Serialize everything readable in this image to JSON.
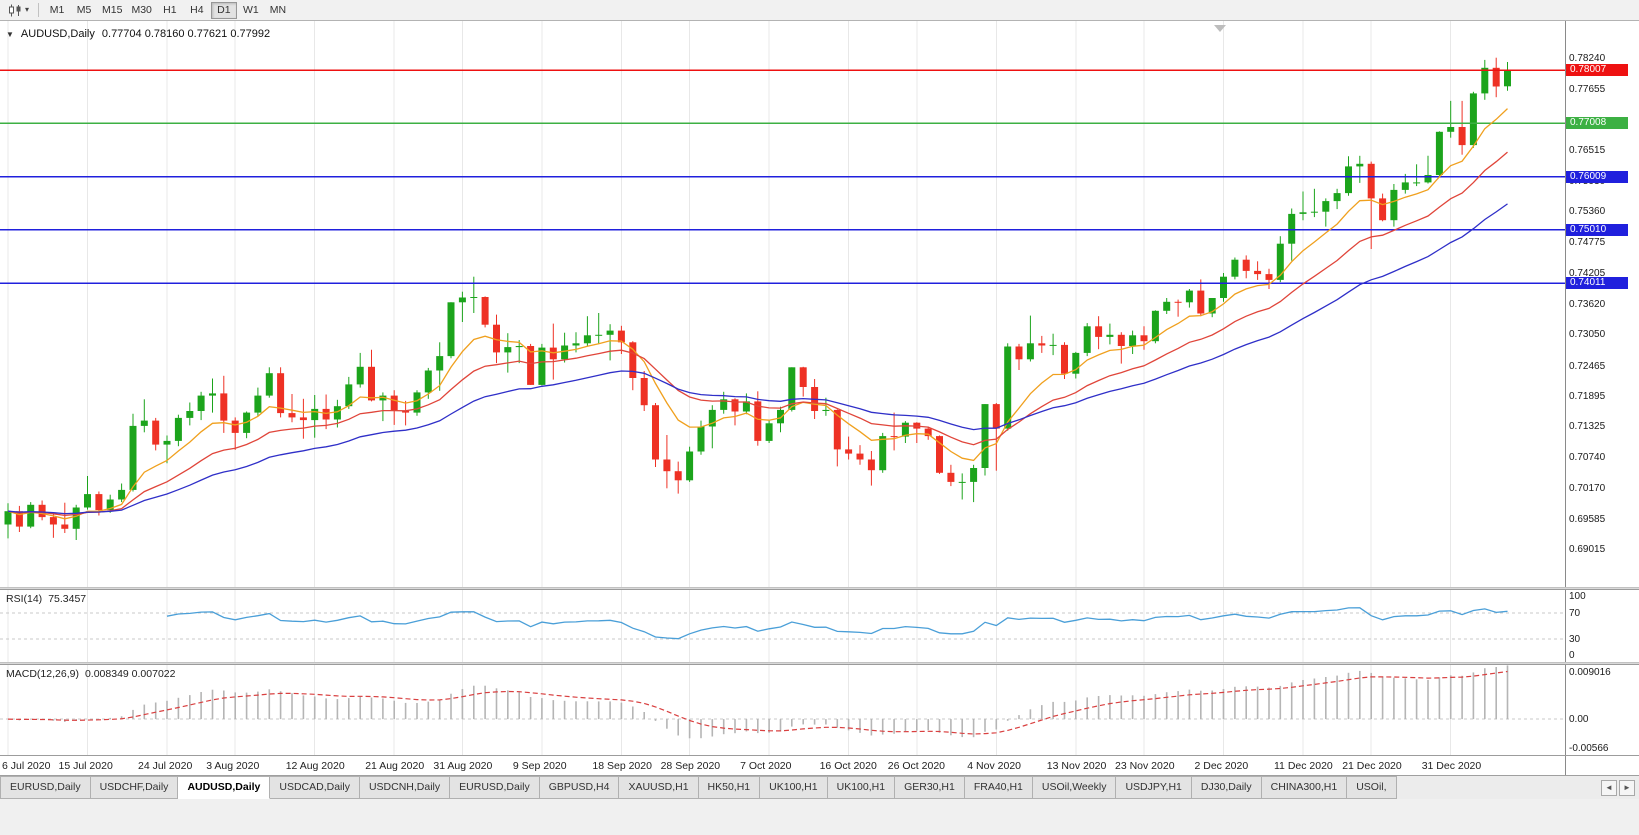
{
  "ui": {
    "collapse_glyph": "▼",
    "caret_glyph": "▾"
  },
  "toolbar": {
    "timeframes": [
      "M1",
      "M5",
      "M15",
      "M30",
      "H1",
      "H4",
      "D1",
      "W1",
      "MN"
    ],
    "active_timeframe": "D1"
  },
  "main_chart": {
    "title": "AUDUSD,Daily",
    "ohlc_line": "0.77704 0.78160 0.77621 0.77992"
  },
  "price_axis_ticks": [
    "0.78240",
    "0.77655",
    "0.76515",
    "0.75930",
    "0.75360",
    "0.74775",
    "0.74205",
    "0.73620",
    "0.73050",
    "0.72465",
    "0.71895",
    "0.71325",
    "0.70740",
    "0.70170",
    "0.69585",
    "0.69015"
  ],
  "chart_data": {
    "type": "candlestick",
    "symbol": "AUDUSD",
    "timeframe": "Daily",
    "current_bar": {
      "open": 0.77704,
      "high": 0.7816,
      "low": 0.77621,
      "close": 0.77992
    },
    "y_axis": {
      "visible_max": 0.7846,
      "visible_min": 0.6842
    },
    "candle_up_color": "#1ca41c",
    "candle_down_color": "#ee3124",
    "horizontal_lines": [
      {
        "price": 0.78007,
        "label": "0.78007",
        "color": "#ee1111",
        "type": "resistance"
      },
      {
        "price": 0.77008,
        "label": "0.77008",
        "color": "#3cb043",
        "type": "support"
      },
      {
        "price": 0.76009,
        "label": "0.76009",
        "color": "#2020dd",
        "type": "support"
      },
      {
        "price": 0.7501,
        "label": "0.75010",
        "color": "#2020dd",
        "type": "support"
      },
      {
        "price": 0.74011,
        "label": "0.74011",
        "color": "#2020dd",
        "type": "support"
      }
    ],
    "moving_averages": [
      {
        "period": 8,
        "method": "ema",
        "color": "#f0a01e"
      },
      {
        "period": 18,
        "method": "ema",
        "color": "#e0453a"
      },
      {
        "period": 34,
        "method": "ema",
        "color": "#2f2fc8"
      }
    ],
    "x_ticks": [
      {
        "label": "6 Jul 2020",
        "bar": 0
      },
      {
        "label": "15 Jul 2020",
        "bar": 7
      },
      {
        "label": "24 Jul 2020",
        "bar": 14
      },
      {
        "label": "3 Aug 2020",
        "bar": 20
      },
      {
        "label": "12 Aug 2020",
        "bar": 27
      },
      {
        "label": "21 Aug 2020",
        "bar": 34
      },
      {
        "label": "31 Aug 2020",
        "bar": 40
      },
      {
        "label": "9 Sep 2020",
        "bar": 47
      },
      {
        "label": "18 Sep 2020",
        "bar": 54
      },
      {
        "label": "28 Sep 2020",
        "bar": 60
      },
      {
        "label": "7 Oct 2020",
        "bar": 67
      },
      {
        "label": "16 Oct 2020",
        "bar": 74
      },
      {
        "label": "26 Oct 2020",
        "bar": 80
      },
      {
        "label": "4 Nov 2020",
        "bar": 87
      },
      {
        "label": "13 Nov 2020",
        "bar": 94
      },
      {
        "label": "23 Nov 2020",
        "bar": 100
      },
      {
        "label": "2 Dec 2020",
        "bar": 107
      },
      {
        "label": "11 Dec 2020",
        "bar": 114
      },
      {
        "label": "21 Dec 2020",
        "bar": 120
      },
      {
        "label": "31 Dec 2020",
        "bar": 127
      }
    ],
    "candles_ohlc": [
      [
        0.6948,
        0.6988,
        0.6922,
        0.6973
      ],
      [
        0.6973,
        0.6983,
        0.6934,
        0.6944
      ],
      [
        0.6944,
        0.699,
        0.6941,
        0.6985
      ],
      [
        0.6985,
        0.6993,
        0.6956,
        0.6962
      ],
      [
        0.6962,
        0.697,
        0.6923,
        0.6948
      ],
      [
        0.6948,
        0.6989,
        0.6932,
        0.694
      ],
      [
        0.694,
        0.6985,
        0.6919,
        0.698
      ],
      [
        0.698,
        0.7039,
        0.6976,
        0.7005
      ],
      [
        0.7005,
        0.701,
        0.6965,
        0.6975
      ],
      [
        0.6975,
        0.7004,
        0.697,
        0.6995
      ],
      [
        0.6995,
        0.7025,
        0.699,
        0.7013
      ],
      [
        0.7013,
        0.7156,
        0.701,
        0.7133
      ],
      [
        0.7133,
        0.7183,
        0.7121,
        0.7143
      ],
      [
        0.7143,
        0.7148,
        0.7087,
        0.7098
      ],
      [
        0.7098,
        0.7115,
        0.7063,
        0.7105
      ],
      [
        0.7105,
        0.7154,
        0.7095,
        0.7148
      ],
      [
        0.7148,
        0.7177,
        0.7134,
        0.7161
      ],
      [
        0.7161,
        0.7197,
        0.7144,
        0.719
      ],
      [
        0.719,
        0.7222,
        0.7158,
        0.7194
      ],
      [
        0.7194,
        0.7227,
        0.712,
        0.7143
      ],
      [
        0.7143,
        0.7149,
        0.7088,
        0.712
      ],
      [
        0.712,
        0.716,
        0.711,
        0.7158
      ],
      [
        0.7158,
        0.7205,
        0.7151,
        0.719
      ],
      [
        0.719,
        0.7243,
        0.7186,
        0.7232
      ],
      [
        0.7232,
        0.7243,
        0.7149,
        0.7157
      ],
      [
        0.7157,
        0.7193,
        0.714,
        0.7149
      ],
      [
        0.7149,
        0.7184,
        0.7109,
        0.7144
      ],
      [
        0.7144,
        0.7191,
        0.7111,
        0.7165
      ],
      [
        0.7165,
        0.7192,
        0.7127,
        0.7145
      ],
      [
        0.7145,
        0.7182,
        0.713,
        0.717
      ],
      [
        0.717,
        0.7225,
        0.7165,
        0.7211
      ],
      [
        0.7211,
        0.727,
        0.7205,
        0.7244
      ],
      [
        0.7244,
        0.7276,
        0.7179,
        0.7181
      ],
      [
        0.7181,
        0.7196,
        0.7142,
        0.719
      ],
      [
        0.719,
        0.72,
        0.7135,
        0.7161
      ],
      [
        0.7161,
        0.718,
        0.7134,
        0.7158
      ],
      [
        0.7158,
        0.72,
        0.7152,
        0.7196
      ],
      [
        0.7196,
        0.7242,
        0.7184,
        0.7237
      ],
      [
        0.7237,
        0.729,
        0.7199,
        0.7264
      ],
      [
        0.7264,
        0.7365,
        0.726,
        0.7365
      ],
      [
        0.7365,
        0.7385,
        0.7328,
        0.7374
      ],
      [
        0.7374,
        0.7413,
        0.7345,
        0.7375
      ],
      [
        0.7375,
        0.7376,
        0.7318,
        0.7323
      ],
      [
        0.7323,
        0.7342,
        0.7251,
        0.7271
      ],
      [
        0.7271,
        0.7307,
        0.7233,
        0.7281
      ],
      [
        0.7281,
        0.7294,
        0.7251,
        0.7283
      ],
      [
        0.7283,
        0.7287,
        0.721,
        0.721
      ],
      [
        0.721,
        0.7287,
        0.7209,
        0.728
      ],
      [
        0.728,
        0.7325,
        0.722,
        0.7258
      ],
      [
        0.7258,
        0.7308,
        0.7252,
        0.7284
      ],
      [
        0.7284,
        0.7309,
        0.7271,
        0.7288
      ],
      [
        0.7288,
        0.7339,
        0.7283,
        0.7303
      ],
      [
        0.7303,
        0.7345,
        0.7287,
        0.7304
      ],
      [
        0.7304,
        0.7324,
        0.7256,
        0.7312
      ],
      [
        0.7312,
        0.7321,
        0.7268,
        0.729
      ],
      [
        0.729,
        0.7292,
        0.72,
        0.7223
      ],
      [
        0.7223,
        0.7236,
        0.7161,
        0.7172
      ],
      [
        0.7172,
        0.7176,
        0.7056,
        0.707
      ],
      [
        0.707,
        0.7116,
        0.7016,
        0.7048
      ],
      [
        0.7048,
        0.7066,
        0.7006,
        0.7031
      ],
      [
        0.7031,
        0.7094,
        0.7028,
        0.7085
      ],
      [
        0.7085,
        0.7143,
        0.7079,
        0.7132
      ],
      [
        0.7132,
        0.7172,
        0.7091,
        0.7163
      ],
      [
        0.7163,
        0.7197,
        0.7156,
        0.7183
      ],
      [
        0.7183,
        0.7185,
        0.7134,
        0.716
      ],
      [
        0.716,
        0.7194,
        0.7155,
        0.7179
      ],
      [
        0.7179,
        0.7198,
        0.7096,
        0.7105
      ],
      [
        0.7105,
        0.7144,
        0.7101,
        0.7138
      ],
      [
        0.7138,
        0.7169,
        0.7121,
        0.7163
      ],
      [
        0.7163,
        0.7243,
        0.716,
        0.7243
      ],
      [
        0.7243,
        0.7244,
        0.7188,
        0.7206
      ],
      [
        0.7206,
        0.7221,
        0.7146,
        0.7161
      ],
      [
        0.7161,
        0.7186,
        0.7152,
        0.7163
      ],
      [
        0.7163,
        0.7164,
        0.7057,
        0.7089
      ],
      [
        0.7089,
        0.7113,
        0.707,
        0.7081
      ],
      [
        0.7081,
        0.7097,
        0.706,
        0.707
      ],
      [
        0.707,
        0.7086,
        0.7021,
        0.705
      ],
      [
        0.705,
        0.712,
        0.7045,
        0.7114
      ],
      [
        0.7114,
        0.7158,
        0.7087,
        0.7113
      ],
      [
        0.7113,
        0.7142,
        0.7101,
        0.7139
      ],
      [
        0.7139,
        0.714,
        0.7101,
        0.7128
      ],
      [
        0.7128,
        0.7132,
        0.7107,
        0.7114
      ],
      [
        0.7114,
        0.7115,
        0.7043,
        0.7045
      ],
      [
        0.7045,
        0.706,
        0.702,
        0.7028
      ],
      [
        0.7028,
        0.7044,
        0.6995,
        0.7028
      ],
      [
        0.7028,
        0.706,
        0.699,
        0.7054
      ],
      [
        0.7054,
        0.7174,
        0.704,
        0.7174
      ],
      [
        0.7174,
        0.7176,
        0.7049,
        0.7128
      ],
      [
        0.7128,
        0.7288,
        0.7124,
        0.7282
      ],
      [
        0.7282,
        0.7287,
        0.7238,
        0.7258
      ],
      [
        0.7258,
        0.734,
        0.7254,
        0.7288
      ],
      [
        0.7288,
        0.7302,
        0.727,
        0.7284
      ],
      [
        0.7284,
        0.7306,
        0.7266,
        0.7285
      ],
      [
        0.7285,
        0.729,
        0.7221,
        0.7231
      ],
      [
        0.7231,
        0.7272,
        0.7222,
        0.727
      ],
      [
        0.727,
        0.7326,
        0.7264,
        0.732
      ],
      [
        0.732,
        0.7339,
        0.7277,
        0.73
      ],
      [
        0.73,
        0.7325,
        0.7286,
        0.7304
      ],
      [
        0.7304,
        0.7309,
        0.725,
        0.7283
      ],
      [
        0.7283,
        0.7312,
        0.7268,
        0.7303
      ],
      [
        0.7303,
        0.732,
        0.7276,
        0.7292
      ],
      [
        0.7292,
        0.735,
        0.7288,
        0.7349
      ],
      [
        0.7349,
        0.7373,
        0.7343,
        0.7366
      ],
      [
        0.7366,
        0.737,
        0.7338,
        0.7365
      ],
      [
        0.7365,
        0.739,
        0.7355,
        0.7387
      ],
      [
        0.7387,
        0.7408,
        0.7339,
        0.7344
      ],
      [
        0.7344,
        0.7373,
        0.7337,
        0.7373
      ],
      [
        0.7373,
        0.742,
        0.7366,
        0.7413
      ],
      [
        0.7413,
        0.7449,
        0.7408,
        0.7445
      ],
      [
        0.7445,
        0.7453,
        0.741,
        0.7424
      ],
      [
        0.7424,
        0.7442,
        0.7407,
        0.7418
      ],
      [
        0.7418,
        0.7428,
        0.739,
        0.7407
      ],
      [
        0.7407,
        0.7489,
        0.7403,
        0.7475
      ],
      [
        0.7475,
        0.7541,
        0.7443,
        0.7531
      ],
      [
        0.7531,
        0.7573,
        0.7519,
        0.7534
      ],
      [
        0.7534,
        0.7578,
        0.7525,
        0.7535
      ],
      [
        0.7535,
        0.756,
        0.7507,
        0.7555
      ],
      [
        0.7555,
        0.7578,
        0.754,
        0.757
      ],
      [
        0.757,
        0.7639,
        0.7565,
        0.762
      ],
      [
        0.762,
        0.764,
        0.7589,
        0.7625
      ],
      [
        0.7625,
        0.7629,
        0.7465,
        0.756
      ],
      [
        0.756,
        0.7569,
        0.7517,
        0.7519
      ],
      [
        0.7519,
        0.7587,
        0.7507,
        0.7576
      ],
      [
        0.7576,
        0.7606,
        0.7569,
        0.759
      ],
      [
        0.759,
        0.7624,
        0.7583,
        0.759
      ],
      [
        0.759,
        0.764,
        0.7588,
        0.7604
      ],
      [
        0.7604,
        0.7686,
        0.7601,
        0.7685
      ],
      [
        0.7685,
        0.7743,
        0.7674,
        0.7694
      ],
      [
        0.7694,
        0.7743,
        0.7642,
        0.766
      ],
      [
        0.766,
        0.776,
        0.7655,
        0.7757
      ],
      [
        0.7757,
        0.782,
        0.7745,
        0.7805
      ],
      [
        0.7805,
        0.7824,
        0.775,
        0.777
      ],
      [
        0.77704,
        0.7816,
        0.77621,
        0.77992
      ]
    ],
    "indicators": [
      {
        "name": "RSI",
        "title": "RSI(14)",
        "value": "75.3457",
        "line_color": "#4a9fd8",
        "range": [
          0,
          100
        ],
        "levels": [
          70,
          30
        ],
        "axis_labels": [
          {
            "text": "100",
            "value": 100
          },
          {
            "text": "70",
            "value": 70
          },
          {
            "text": "30",
            "value": 30
          },
          {
            "text": "0",
            "value": 0
          }
        ]
      },
      {
        "name": "MACD",
        "title": "MACD(12,26,9)",
        "value": "0.008349 0.007022",
        "histogram_color": "#b5b5b5",
        "signal_color": "#d94040",
        "range": [
          -0.00566,
          0.009016
        ],
        "axis_labels": [
          {
            "text": "0.009016",
            "value": 0.009016
          },
          {
            "text": "0.00",
            "value": 0
          },
          {
            "text": "-0.00566",
            "value": -0.00566
          }
        ]
      }
    ]
  },
  "tabs": {
    "scroll_left": "◄",
    "scroll_right": "►",
    "items": [
      {
        "label": "EURUSD,Daily",
        "active": false
      },
      {
        "label": "USDCHF,Daily",
        "active": false
      },
      {
        "label": "AUDUSD,Daily",
        "active": true
      },
      {
        "label": "USDCAD,Daily",
        "active": false
      },
      {
        "label": "USDCNH,Daily",
        "active": false
      },
      {
        "label": "EURUSD,Daily",
        "active": false
      },
      {
        "label": "GBPUSD,H4",
        "active": false
      },
      {
        "label": "XAUUSD,H1",
        "active": false
      },
      {
        "label": "HK50,H1",
        "active": false
      },
      {
        "label": "UK100,H1",
        "active": false
      },
      {
        "label": "UK100,H1",
        "active": false
      },
      {
        "label": "GER30,H1",
        "active": false
      },
      {
        "label": "FRA40,H1",
        "active": false
      },
      {
        "label": "USOil,Weekly",
        "active": false
      },
      {
        "label": "USDJPY,H1",
        "active": false
      },
      {
        "label": "DJ30,Daily",
        "active": false
      },
      {
        "label": "CHINA300,H1",
        "active": false
      },
      {
        "label": "USOil,",
        "active": false
      }
    ]
  }
}
